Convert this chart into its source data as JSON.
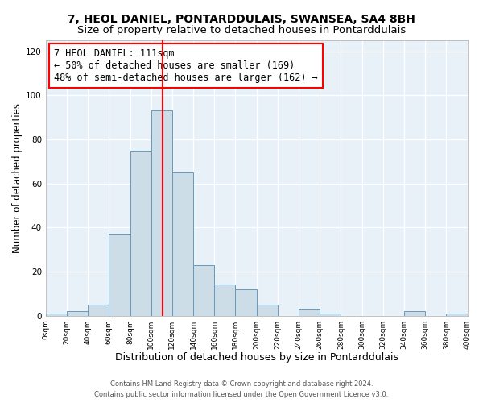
{
  "title": "7, HEOL DANIEL, PONTARDDULAIS, SWANSEA, SA4 8BH",
  "subtitle": "Size of property relative to detached houses in Pontarddulais",
  "xlabel": "Distribution of detached houses by size in Pontarddulais",
  "ylabel": "Number of detached properties",
  "bin_edges": [
    0,
    20,
    40,
    60,
    80,
    100,
    120,
    140,
    160,
    180,
    200,
    220,
    240,
    260,
    280,
    300,
    320,
    340,
    360,
    380,
    400
  ],
  "bar_heights": [
    1,
    2,
    5,
    37,
    75,
    93,
    65,
    23,
    14,
    12,
    5,
    0,
    3,
    1,
    0,
    0,
    0,
    2,
    0,
    1
  ],
  "bar_color": "#ccdde8",
  "bar_edge_color": "#6699bb",
  "vline_x": 111,
  "vline_color": "red",
  "annotation_text": "7 HEOL DANIEL: 111sqm\n← 50% of detached houses are smaller (169)\n48% of semi-detached houses are larger (162) →",
  "annotation_fontsize": 8.5,
  "annotation_box_color": "white",
  "annotation_box_edge_color": "red",
  "ylim": [
    0,
    125
  ],
  "xlim": [
    0,
    400
  ],
  "ytick_vals": [
    0,
    20,
    40,
    60,
    80,
    100,
    120
  ],
  "xtick_labels": [
    "0sqm",
    "20sqm",
    "40sqm",
    "60sqm",
    "80sqm",
    "100sqm",
    "120sqm",
    "140sqm",
    "160sqm",
    "180sqm",
    "200sqm",
    "220sqm",
    "240sqm",
    "260sqm",
    "280sqm",
    "300sqm",
    "320sqm",
    "340sqm",
    "360sqm",
    "380sqm",
    "400sqm"
  ],
  "xtick_positions": [
    0,
    20,
    40,
    60,
    80,
    100,
    120,
    140,
    160,
    180,
    200,
    220,
    240,
    260,
    280,
    300,
    320,
    340,
    360,
    380,
    400
  ],
  "title_fontsize": 10,
  "subtitle_fontsize": 9.5,
  "xlabel_fontsize": 9,
  "ylabel_fontsize": 8.5,
  "footer_text": "Contains HM Land Registry data © Crown copyright and database right 2024.\nContains public sector information licensed under the Open Government Licence v3.0.",
  "background_color": "#ffffff",
  "plot_bg_color": "#e8f0f8",
  "grid_color": "#ffffff"
}
